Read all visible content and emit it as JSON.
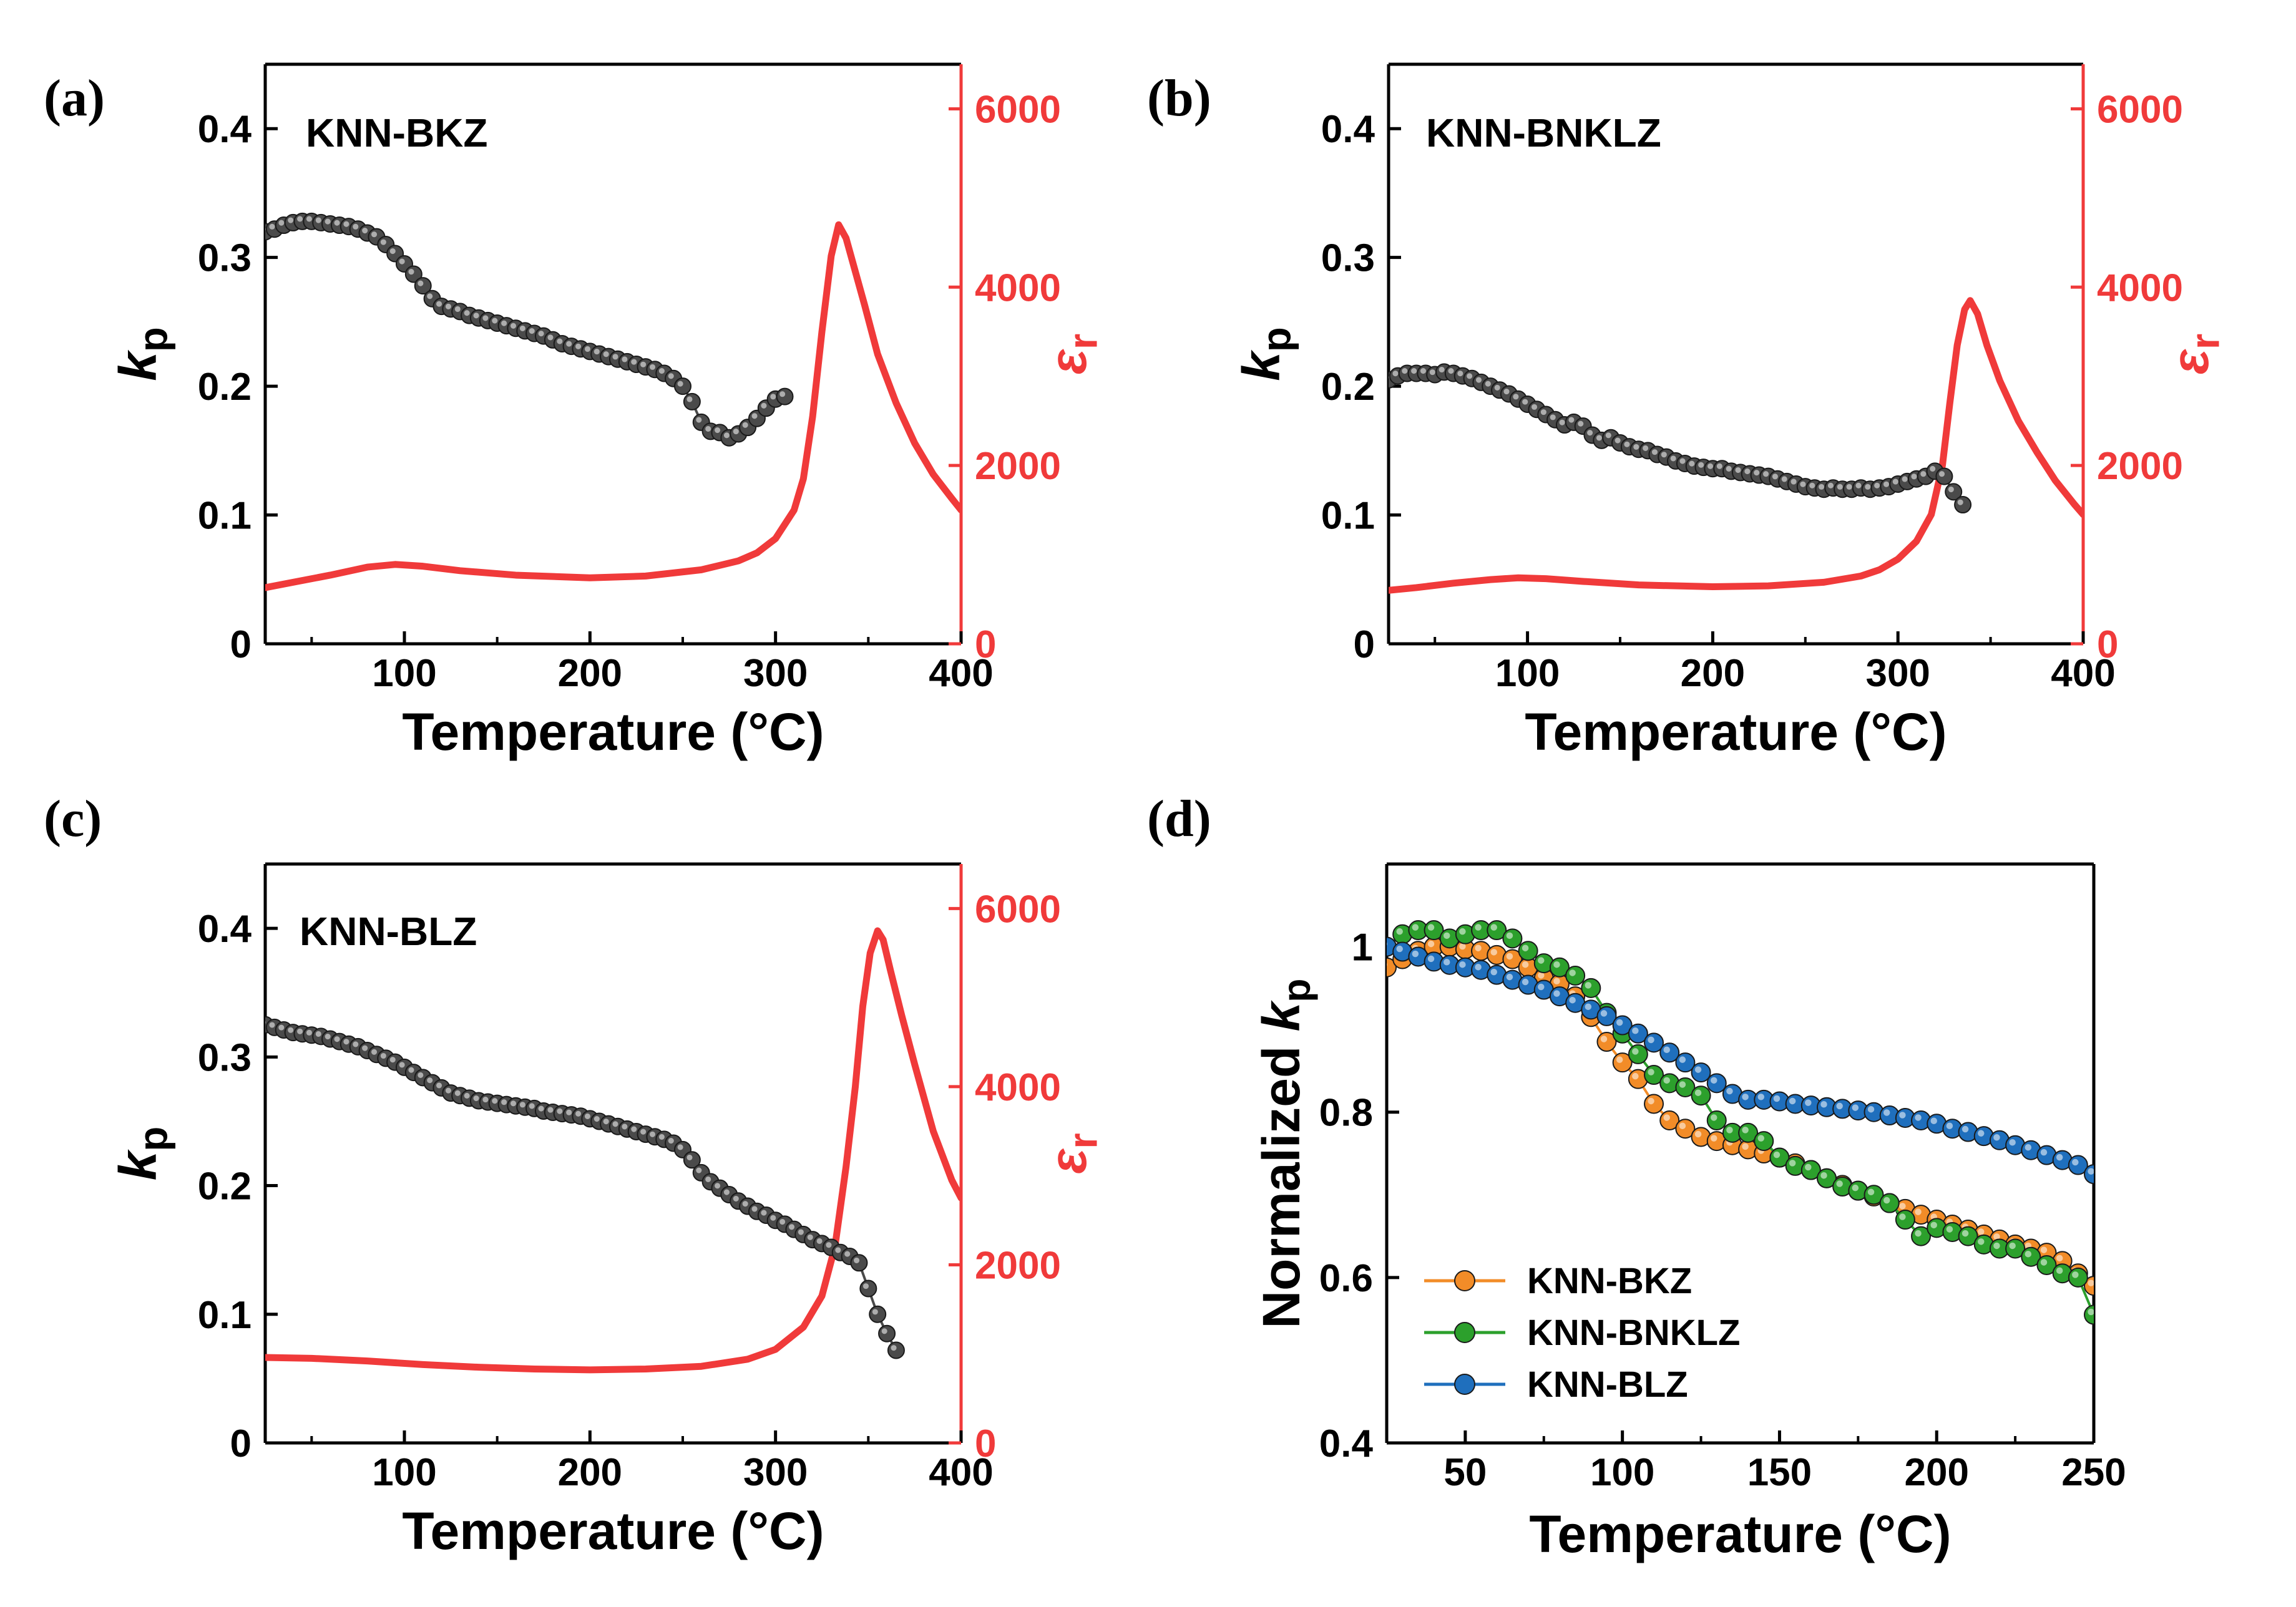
{
  "chart_data": [
    {
      "id": "a",
      "panel_label": "(a)",
      "type": "line",
      "title": "KNN-BKZ",
      "xlabel": "Temperature (°C)",
      "ylabel": "k_p",
      "ylabel_right": "ε_r",
      "xlim": [
        25,
        400
      ],
      "ylim": [
        0,
        0.45
      ],
      "y2lim": [
        0,
        6500
      ],
      "xticks": [
        100,
        200,
        300,
        400
      ],
      "yticks": [
        0,
        0.1,
        0.2,
        0.3,
        0.4
      ],
      "y2ticks": [
        0,
        2000,
        4000,
        6000
      ],
      "kp": {
        "name": "kp",
        "color": "#3a3a3a",
        "x": [
          25,
          30,
          35,
          40,
          45,
          50,
          55,
          60,
          65,
          70,
          75,
          80,
          85,
          90,
          95,
          100,
          105,
          110,
          115,
          120,
          125,
          130,
          135,
          140,
          145,
          150,
          155,
          160,
          165,
          170,
          175,
          180,
          185,
          190,
          195,
          200,
          205,
          210,
          215,
          220,
          225,
          230,
          235,
          240,
          245,
          250,
          255,
          260,
          265,
          270,
          275,
          280,
          285,
          290,
          295,
          300,
          305
        ],
        "y": [
          0.32,
          0.322,
          0.325,
          0.327,
          0.328,
          0.328,
          0.327,
          0.326,
          0.325,
          0.324,
          0.322,
          0.319,
          0.316,
          0.31,
          0.303,
          0.295,
          0.287,
          0.278,
          0.268,
          0.262,
          0.26,
          0.258,
          0.255,
          0.253,
          0.251,
          0.249,
          0.247,
          0.245,
          0.243,
          0.241,
          0.239,
          0.236,
          0.233,
          0.231,
          0.229,
          0.227,
          0.225,
          0.223,
          0.221,
          0.219,
          0.217,
          0.215,
          0.213,
          0.21,
          0.206,
          0.2,
          0.188,
          0.172,
          0.165,
          0.164,
          0.16,
          0.163,
          0.168,
          0.175,
          0.183,
          0.19,
          0.192
        ]
      },
      "eps": {
        "name": "εr",
        "color": "#f03a3a",
        "x": [
          25,
          40,
          60,
          80,
          95,
          110,
          130,
          160,
          200,
          230,
          260,
          280,
          290,
          300,
          310,
          315,
          320,
          325,
          330,
          334,
          338,
          342,
          348,
          355,
          365,
          375,
          385,
          395,
          400
        ],
        "y": [
          630,
          690,
          770,
          860,
          890,
          870,
          820,
          770,
          740,
          760,
          830,
          930,
          1020,
          1180,
          1500,
          1850,
          2550,
          3500,
          4350,
          4700,
          4550,
          4250,
          3800,
          3250,
          2700,
          2250,
          1900,
          1630,
          1500
        ]
      }
    },
    {
      "id": "b",
      "panel_label": "(b)",
      "type": "line",
      "title": "KNN-BNKLZ",
      "xlabel": "Temperature (°C)",
      "ylabel": "k_p",
      "ylabel_right": "ε_r",
      "xlim": [
        25,
        400
      ],
      "ylim": [
        0,
        0.45
      ],
      "y2lim": [
        0,
        6500
      ],
      "xticks": [
        100,
        200,
        300,
        400
      ],
      "yticks": [
        0,
        0.1,
        0.2,
        0.3,
        0.4
      ],
      "y2ticks": [
        0,
        2000,
        4000,
        6000
      ],
      "kp": {
        "name": "kp",
        "color": "#3a3a3a",
        "x": [
          25,
          30,
          35,
          40,
          45,
          50,
          55,
          60,
          65,
          70,
          75,
          80,
          85,
          90,
          95,
          100,
          105,
          110,
          115,
          120,
          125,
          130,
          135,
          140,
          145,
          150,
          155,
          160,
          165,
          170,
          175,
          180,
          185,
          190,
          195,
          200,
          205,
          210,
          215,
          220,
          225,
          230,
          235,
          240,
          245,
          250,
          255,
          260,
          265,
          270,
          275,
          280,
          285,
          290,
          295,
          300,
          305,
          310,
          315,
          320,
          325,
          330,
          335
        ],
        "y": [
          0.205,
          0.208,
          0.21,
          0.21,
          0.21,
          0.209,
          0.211,
          0.21,
          0.208,
          0.206,
          0.203,
          0.2,
          0.197,
          0.194,
          0.19,
          0.186,
          0.182,
          0.178,
          0.174,
          0.17,
          0.172,
          0.169,
          0.162,
          0.158,
          0.16,
          0.156,
          0.153,
          0.151,
          0.15,
          0.147,
          0.145,
          0.142,
          0.14,
          0.138,
          0.137,
          0.136,
          0.136,
          0.134,
          0.133,
          0.132,
          0.131,
          0.13,
          0.128,
          0.126,
          0.124,
          0.122,
          0.121,
          0.12,
          0.121,
          0.12,
          0.12,
          0.121,
          0.12,
          0.121,
          0.122,
          0.124,
          0.126,
          0.128,
          0.13,
          0.134,
          0.13,
          0.118,
          0.108
        ]
      },
      "eps": {
        "name": "εr",
        "color": "#f03a3a",
        "x": [
          25,
          40,
          60,
          80,
          95,
          110,
          130,
          160,
          200,
          230,
          260,
          280,
          290,
          300,
          310,
          318,
          324,
          328,
          332,
          336,
          339,
          343,
          348,
          355,
          365,
          375,
          385,
          395,
          400
        ],
        "y": [
          600,
          630,
          680,
          720,
          740,
          730,
          700,
          660,
          640,
          650,
          690,
          760,
          830,
          950,
          1150,
          1450,
          2000,
          2700,
          3350,
          3750,
          3850,
          3700,
          3350,
          2950,
          2500,
          2150,
          1830,
          1570,
          1450
        ]
      }
    },
    {
      "id": "c",
      "panel_label": "(c)",
      "type": "line",
      "title": "KNN-BLZ",
      "xlabel": "Temperature (°C)",
      "ylabel": "k_p",
      "ylabel_right": "ε_r",
      "xlim": [
        25,
        400
      ],
      "ylim": [
        0,
        0.45
      ],
      "y2lim": [
        0,
        6500
      ],
      "xticks": [
        100,
        200,
        300,
        400
      ],
      "yticks": [
        0,
        0.1,
        0.2,
        0.3,
        0.4
      ],
      "y2ticks": [
        0,
        2000,
        4000,
        6000
      ],
      "kp": {
        "name": "kp",
        "color": "#3a3a3a",
        "x": [
          25,
          30,
          35,
          40,
          45,
          50,
          55,
          60,
          65,
          70,
          75,
          80,
          85,
          90,
          95,
          100,
          105,
          110,
          115,
          120,
          125,
          130,
          135,
          140,
          145,
          150,
          155,
          160,
          165,
          170,
          175,
          180,
          185,
          190,
          195,
          200,
          205,
          210,
          215,
          220,
          225,
          230,
          235,
          240,
          245,
          250,
          255,
          260,
          265,
          270,
          275,
          280,
          285,
          290,
          295,
          300,
          305,
          310,
          315,
          320,
          325,
          330,
          335,
          340,
          345,
          350,
          355,
          360,
          365
        ],
        "y": [
          0.325,
          0.323,
          0.321,
          0.319,
          0.318,
          0.317,
          0.316,
          0.314,
          0.312,
          0.31,
          0.308,
          0.305,
          0.302,
          0.299,
          0.296,
          0.292,
          0.288,
          0.284,
          0.28,
          0.276,
          0.272,
          0.27,
          0.268,
          0.266,
          0.265,
          0.264,
          0.263,
          0.262,
          0.261,
          0.26,
          0.258,
          0.257,
          0.256,
          0.255,
          0.254,
          0.252,
          0.25,
          0.248,
          0.246,
          0.244,
          0.242,
          0.24,
          0.238,
          0.236,
          0.233,
          0.228,
          0.22,
          0.21,
          0.203,
          0.198,
          0.193,
          0.188,
          0.184,
          0.18,
          0.177,
          0.173,
          0.17,
          0.166,
          0.162,
          0.158,
          0.155,
          0.152,
          0.148,
          0.145,
          0.14,
          0.12,
          0.1,
          0.085,
          0.072
        ]
      },
      "eps": {
        "name": "εr",
        "color": "#f03a3a",
        "x": [
          25,
          50,
          80,
          110,
          140,
          170,
          200,
          230,
          260,
          285,
          300,
          315,
          325,
          332,
          338,
          343,
          347,
          351,
          355,
          358,
          362,
          368,
          375,
          385,
          395,
          400
        ],
        "y": [
          960,
          950,
          920,
          880,
          850,
          830,
          820,
          830,
          860,
          940,
          1050,
          1300,
          1650,
          2200,
          3100,
          4000,
          4900,
          5500,
          5750,
          5650,
          5300,
          4800,
          4250,
          3500,
          2950,
          2750
        ]
      }
    },
    {
      "id": "d",
      "panel_label": "(d)",
      "type": "line",
      "title": "",
      "xlabel": "Temperature (°C)",
      "ylabel": "Normalized k_p",
      "xlim": [
        25,
        250
      ],
      "ylim": [
        0.4,
        1.1
      ],
      "xticks": [
        50,
        100,
        150,
        200,
        250
      ],
      "yticks": [
        0.4,
        0.6,
        0.8,
        1.0
      ],
      "legend_position": "bottom-left",
      "series": [
        {
          "name": "KNN-BKZ",
          "color": "#f28c28",
          "x": [
            25,
            30,
            35,
            40,
            45,
            50,
            55,
            60,
            65,
            70,
            75,
            80,
            85,
            90,
            95,
            100,
            105,
            110,
            115,
            120,
            125,
            130,
            135,
            140,
            145,
            150,
            155,
            160,
            165,
            170,
            175,
            180,
            185,
            190,
            195,
            200,
            205,
            210,
            215,
            220,
            225,
            230,
            235,
            240,
            245,
            250
          ],
          "y": [
            0.975,
            0.985,
            0.995,
            1.0,
            1.0,
            0.997,
            0.995,
            0.99,
            0.985,
            0.975,
            0.962,
            0.955,
            0.94,
            0.915,
            0.885,
            0.86,
            0.84,
            0.81,
            0.79,
            0.78,
            0.77,
            0.765,
            0.76,
            0.755,
            0.75,
            0.745,
            0.738,
            0.73,
            0.72,
            0.712,
            0.705,
            0.698,
            0.69,
            0.683,
            0.676,
            0.67,
            0.664,
            0.658,
            0.652,
            0.646,
            0.64,
            0.635,
            0.63,
            0.62,
            0.605,
            0.59
          ]
        },
        {
          "name": "KNN-BNKLZ",
          "color": "#2ca02c",
          "x": [
            25,
            30,
            35,
            40,
            45,
            50,
            55,
            60,
            65,
            70,
            75,
            80,
            85,
            90,
            95,
            100,
            105,
            110,
            115,
            120,
            125,
            130,
            135,
            140,
            145,
            150,
            155,
            160,
            165,
            170,
            175,
            180,
            185,
            190,
            195,
            200,
            205,
            210,
            215,
            220,
            225,
            230,
            235,
            240,
            245,
            250
          ],
          "y": [
            1.0,
            1.015,
            1.02,
            1.02,
            1.01,
            1.015,
            1.02,
            1.02,
            1.01,
            0.995,
            0.98,
            0.975,
            0.965,
            0.95,
            0.92,
            0.895,
            0.87,
            0.845,
            0.835,
            0.83,
            0.82,
            0.79,
            0.775,
            0.775,
            0.765,
            0.745,
            0.735,
            0.73,
            0.72,
            0.71,
            0.705,
            0.7,
            0.69,
            0.67,
            0.65,
            0.66,
            0.655,
            0.65,
            0.64,
            0.635,
            0.635,
            0.625,
            0.615,
            0.605,
            0.6,
            0.555
          ]
        },
        {
          "name": "KNN-BLZ",
          "color": "#1f6fbd",
          "x": [
            25,
            30,
            35,
            40,
            45,
            50,
            55,
            60,
            65,
            70,
            75,
            80,
            85,
            90,
            95,
            100,
            105,
            110,
            115,
            120,
            125,
            130,
            135,
            140,
            145,
            150,
            155,
            160,
            165,
            170,
            175,
            180,
            185,
            190,
            195,
            200,
            205,
            210,
            215,
            220,
            225,
            230,
            235,
            240,
            245,
            250
          ],
          "y": [
            1.0,
            0.994,
            0.988,
            0.982,
            0.978,
            0.975,
            0.972,
            0.966,
            0.96,
            0.954,
            0.948,
            0.94,
            0.932,
            0.924,
            0.916,
            0.905,
            0.895,
            0.884,
            0.872,
            0.86,
            0.848,
            0.835,
            0.822,
            0.815,
            0.815,
            0.813,
            0.81,
            0.808,
            0.806,
            0.804,
            0.802,
            0.8,
            0.796,
            0.793,
            0.79,
            0.786,
            0.78,
            0.776,
            0.771,
            0.766,
            0.76,
            0.754,
            0.748,
            0.742,
            0.736,
            0.725
          ]
        }
      ]
    }
  ]
}
